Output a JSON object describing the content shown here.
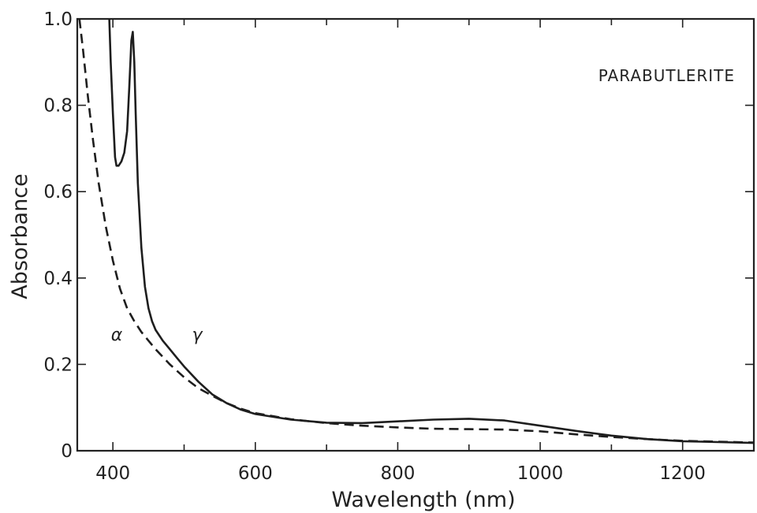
{
  "chart_data": {
    "type": "line",
    "title": "",
    "xlabel": "Wavelength (nm)",
    "ylabel": "Absorbance",
    "xlim": [
      350,
      1300
    ],
    "ylim": [
      0,
      1.0
    ],
    "x_ticks": [
      400,
      600,
      800,
      1000,
      1200
    ],
    "x_tick_labels": [
      "400",
      "600",
      "800",
      "1000",
      "1200"
    ],
    "x_minor_ticks": [
      500,
      700,
      900,
      1100
    ],
    "y_ticks": [
      0,
      0.2,
      0.4,
      0.6,
      0.8,
      1.0
    ],
    "y_tick_labels": [
      "0",
      "0.2",
      "0.4",
      "0.6",
      "0.8",
      "1.0"
    ],
    "grid": false,
    "annotations": [
      {
        "text": "PARABUTLERITE",
        "x": 1180,
        "y": 0.85
      },
      {
        "text": "α",
        "x": 395,
        "y": 0.26
      },
      {
        "text": "γ",
        "x": 503,
        "y": 0.26
      }
    ],
    "series": [
      {
        "key": "gamma",
        "style": "solid",
        "x": [
          395,
          397,
          400,
          403,
          405,
          408,
          412,
          416,
          420,
          423,
          426,
          428,
          430,
          432,
          435,
          440,
          445,
          450,
          455,
          460,
          470,
          480,
          490,
          500,
          520,
          540,
          560,
          580,
          600,
          650,
          700,
          750,
          800,
          850,
          900,
          950,
          1000,
          1050,
          1100,
          1150,
          1200,
          1250,
          1300
        ],
        "y": [
          1.0,
          0.9,
          0.78,
          0.68,
          0.66,
          0.66,
          0.67,
          0.69,
          0.74,
          0.84,
          0.95,
          0.97,
          0.9,
          0.78,
          0.62,
          0.47,
          0.38,
          0.33,
          0.3,
          0.28,
          0.255,
          0.235,
          0.215,
          0.195,
          0.16,
          0.13,
          0.11,
          0.095,
          0.085,
          0.072,
          0.065,
          0.064,
          0.068,
          0.072,
          0.074,
          0.07,
          0.058,
          0.046,
          0.035,
          0.027,
          0.022,
          0.02,
          0.018
        ]
      },
      {
        "key": "alpha",
        "style": "dashed",
        "x": [
          353,
          358,
          365,
          372,
          380,
          390,
          400,
          410,
          420,
          430,
          440,
          450,
          460,
          480,
          500,
          520,
          540,
          560,
          580,
          600,
          650,
          700,
          750,
          800,
          850,
          900,
          950,
          1000,
          1050,
          1100,
          1150,
          1200,
          1250,
          1300
        ],
        "y": [
          1.0,
          0.93,
          0.82,
          0.72,
          0.62,
          0.52,
          0.44,
          0.375,
          0.33,
          0.3,
          0.275,
          0.255,
          0.235,
          0.2,
          0.17,
          0.145,
          0.127,
          0.11,
          0.097,
          0.087,
          0.073,
          0.064,
          0.058,
          0.054,
          0.051,
          0.05,
          0.049,
          0.045,
          0.038,
          0.032,
          0.027,
          0.023,
          0.021,
          0.019
        ]
      }
    ]
  }
}
